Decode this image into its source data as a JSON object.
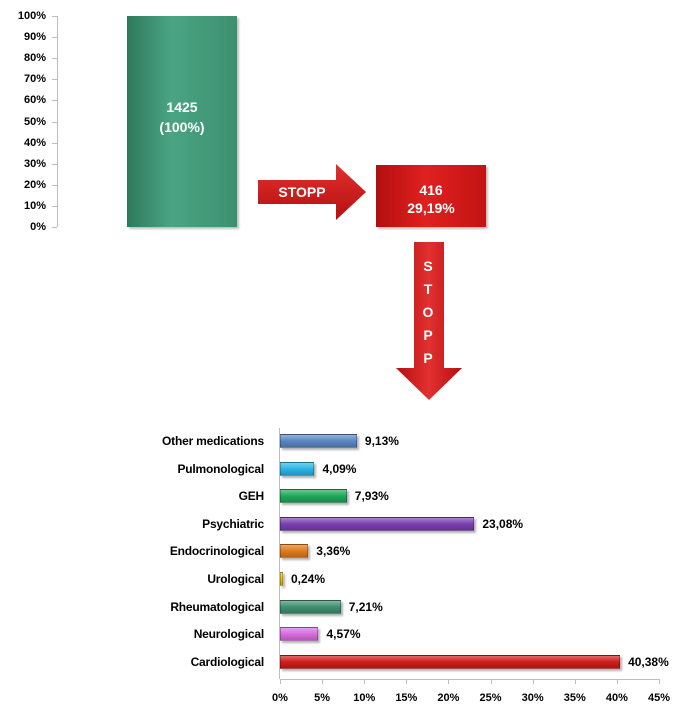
{
  "chart_data": [
    {
      "type": "bar",
      "yticks": [
        "100%",
        "90%",
        "80%",
        "70%",
        "60%",
        "50%",
        "40%",
        "30%",
        "20%",
        "10%",
        "0%"
      ],
      "ylim": [
        0,
        100
      ],
      "bars": [
        {
          "count": "1425",
          "percent_label": "(100%)",
          "value": 100,
          "color": "#3c9070"
        },
        {
          "count": "416",
          "percent_label": "29,19%",
          "value": 29.19,
          "color": "#d01818"
        }
      ],
      "arrow_label": "STOPP",
      "vertical_arrow_letters": [
        "S",
        "T",
        "O",
        "P",
        "P"
      ]
    },
    {
      "type": "bar",
      "orientation": "horizontal",
      "categories": [
        "Other medications",
        "Pulmonological",
        "GEH",
        "Psychiatric",
        "Endocrinological",
        "Urological",
        "Rheumatological",
        "Neurological",
        "Cardiological"
      ],
      "values": [
        9.13,
        4.09,
        7.93,
        23.08,
        3.36,
        0.24,
        7.21,
        4.57,
        40.38
      ],
      "value_labels": [
        "9,13%",
        "4,09%",
        "7,93%",
        "23,08%",
        "3,36%",
        "0,24%",
        "7,21%",
        "4,57%",
        "40,38%"
      ],
      "colors": [
        "#5b86c4",
        "#2ab4e6",
        "#1fa75a",
        "#7a3fb0",
        "#e07a1a",
        "#f2c400",
        "#3f8f6f",
        "#d86be0",
        "#d11a1a"
      ],
      "xticks": [
        "0%",
        "5%",
        "10%",
        "15%",
        "20%",
        "25%",
        "30%",
        "35%",
        "40%",
        "45%"
      ],
      "xlim": [
        0,
        45
      ]
    }
  ]
}
